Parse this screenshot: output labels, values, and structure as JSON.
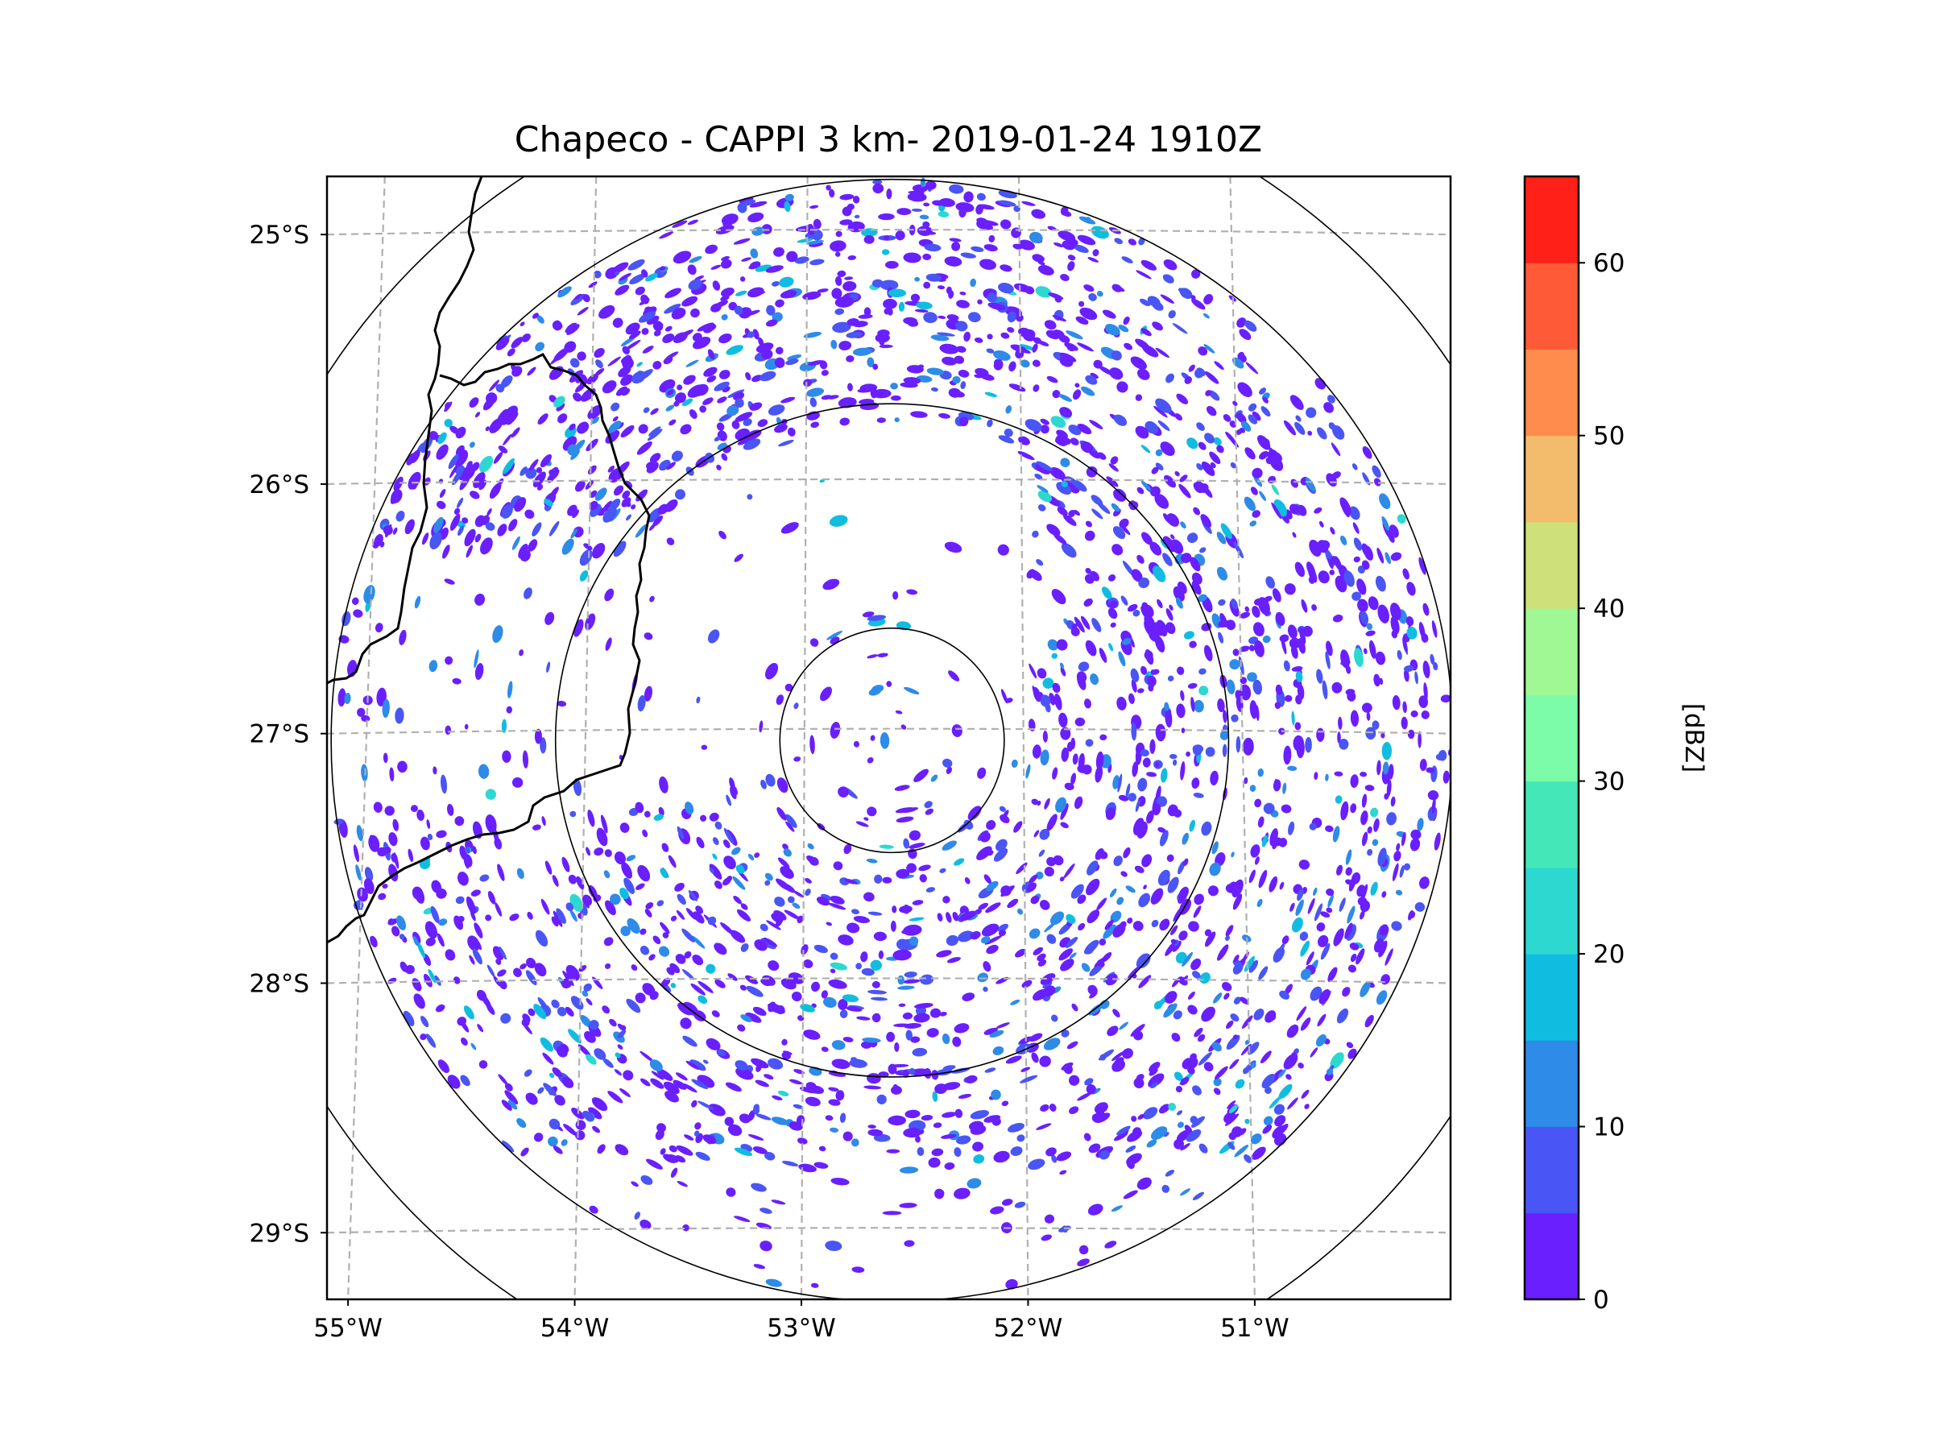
{
  "title": "Chapeco - CAPPI 3 km- 2019-01-24 1910Z",
  "map": {
    "extent": {
      "lon_min": -55.18,
      "lon_max": -50.05,
      "lat_min": -29.28,
      "lat_max": -24.78
    },
    "radar_center": {
      "lon": -52.6,
      "lat": -27.04
    },
    "range_rings_km": [
      50,
      150,
      250,
      300
    ],
    "lon_ticks": [
      {
        "value": -55,
        "label": "55°W"
      },
      {
        "value": -54,
        "label": "54°W"
      },
      {
        "value": -53,
        "label": "53°W"
      },
      {
        "value": -52,
        "label": "52°W"
      },
      {
        "value": -51,
        "label": "51°W"
      }
    ],
    "lat_ticks": [
      {
        "value": -25,
        "label": "25°S"
      },
      {
        "value": -26,
        "label": "26°S"
      },
      {
        "value": -27,
        "label": "27°S"
      },
      {
        "value": -28,
        "label": "28°S"
      },
      {
        "value": -29,
        "label": "29°S"
      }
    ],
    "gridlines": "dashed gray",
    "field": "Radar reflectivity (CAPPI 3 km)"
  },
  "colorbar": {
    "label": "[dBZ]",
    "min": 0,
    "max": 65,
    "bounds": [
      0,
      5,
      10,
      15,
      20,
      25,
      30,
      35,
      40,
      45,
      50,
      55,
      60,
      65
    ],
    "colors": [
      "#6a1fff",
      "#4a55f5",
      "#2e8be8",
      "#10bde0",
      "#2cd8d0",
      "#44e8b8",
      "#7cfca8",
      "#9ff894",
      "#cde07a",
      "#f2bc6c",
      "#ff8c4c",
      "#ff5a38",
      "#ff2018"
    ],
    "ticks": [
      {
        "value": 0,
        "label": "0"
      },
      {
        "value": 10,
        "label": "10"
      },
      {
        "value": 20,
        "label": "20"
      },
      {
        "value": 30,
        "label": "30"
      },
      {
        "value": 40,
        "label": "40"
      },
      {
        "value": 50,
        "label": "50"
      },
      {
        "value": 60,
        "label": "60"
      }
    ]
  }
}
